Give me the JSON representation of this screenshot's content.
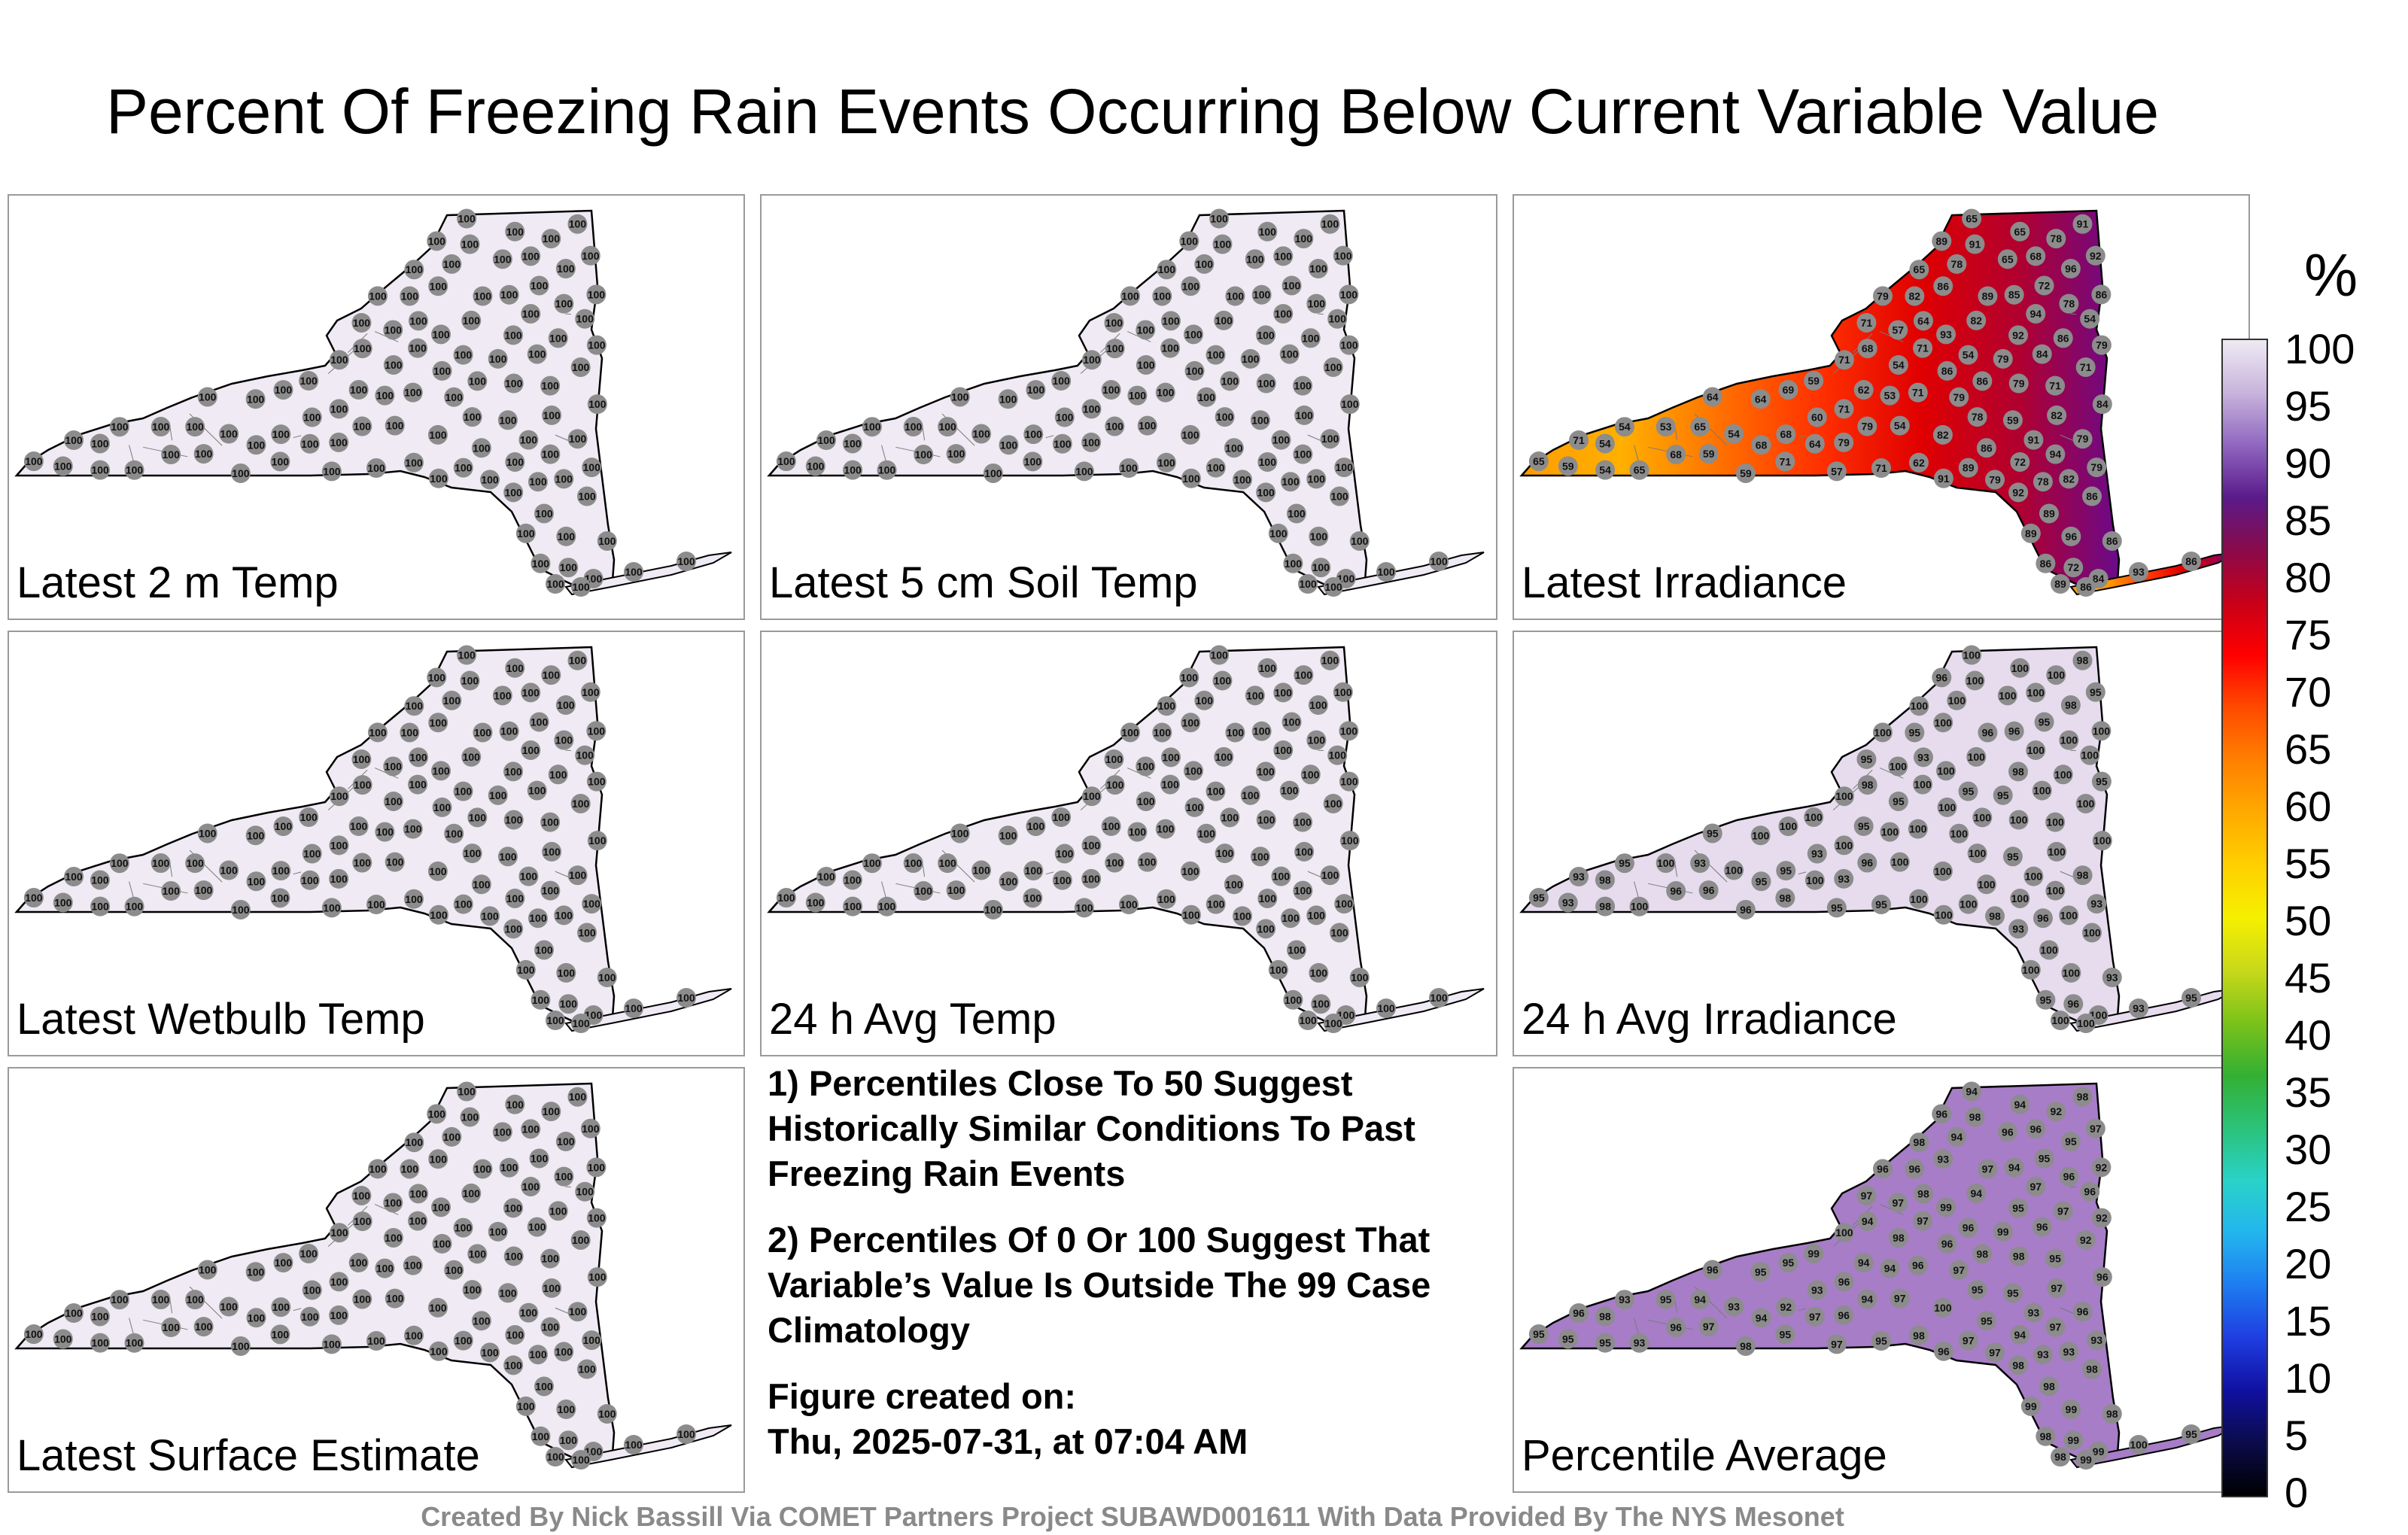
{
  "title": "Percent Of Freezing Rain Events Occurring Below Current Variable Value",
  "panels": [
    {
      "label": "Latest 2 m Temp",
      "mode": "uniform",
      "value": 100,
      "color": "#efeaf3"
    },
    {
      "label": "Latest 5 cm Soil Temp",
      "mode": "uniform",
      "value": 100,
      "color": "#efeaf3"
    },
    {
      "label": "Latest Irradiance",
      "mode": "irradiance",
      "stations_west": [
        65,
        65,
        71,
        68,
        64,
        57,
        59,
        59,
        68,
        53,
        54,
        65,
        54,
        54
      ],
      "stations_mid": [
        59,
        65,
        68,
        69,
        59,
        63,
        54,
        53,
        59,
        57,
        54,
        64,
        71,
        71,
        60,
        62,
        67,
        68,
        71,
        76,
        78,
        82,
        79,
        86,
        71
      ],
      "stations_east": [
        89,
        86,
        93,
        86,
        82,
        72,
        71,
        84,
        79,
        82,
        85,
        72,
        82,
        78,
        86,
        65,
        59,
        71,
        65,
        79,
        86,
        89,
        82,
        94,
        91,
        89,
        86,
        94,
        85,
        68,
        92,
        86,
        79,
        86,
        91,
        96,
        97,
        92,
        98,
        89,
        82,
        83,
        84,
        79,
        78,
        78,
        79,
        69,
        54,
        86
      ],
      "colors": [
        "#ff9c00",
        "#ffb000",
        "#ff7000",
        "#ff3000",
        "#e00000",
        "#b00030",
        "#6a0a8a"
      ]
    },
    {
      "label": "Latest Wetbulb Temp",
      "mode": "uniform",
      "value": 100,
      "color": "#efeaf3"
    },
    {
      "label": "24 h Avg Temp",
      "mode": "uniform",
      "value": 100,
      "color": "#efeaf3"
    },
    {
      "label": "24 h Avg Irradiance",
      "mode": "mixed",
      "values": [
        100,
        100,
        100,
        93,
        95,
        95,
        96,
        100,
        98,
        100,
        100
      ],
      "color": "#e6dcee"
    },
    {
      "label": "Latest Surface Estimate",
      "mode": "uniform",
      "value": 100,
      "color": "#efeaf3"
    },
    {
      "label": "Percentile Average",
      "mode": "average",
      "values": [
        98,
        98,
        99,
        98,
        96,
        95,
        97,
        96,
        96,
        97,
        97,
        95,
        94,
        92,
        93,
        94,
        95,
        96,
        96,
        97,
        98,
        99,
        100,
        95,
        93,
        94,
        93,
        92,
        94,
        93,
        95,
        96,
        94,
        97,
        98,
        99,
        98,
        97,
        95,
        96
      ],
      "color": "#a77dc7"
    }
  ],
  "notes": {
    "p1": "1) Percentiles Close To 50 Suggest Historically Similar Conditions To Past Freezing Rain Events",
    "p2": "2) Percentiles Of 0 Or 100 Suggest That Variable’s Value Is Outside The 99 Case Climatology",
    "created_label": "Figure created on:",
    "created_time": "Thu, 2025-07-31, at 07:04 AM"
  },
  "colorbar": {
    "unit": "%",
    "ticks": [
      "100",
      "95",
      "90",
      "85",
      "80",
      "75",
      "70",
      "65",
      "60",
      "55",
      "50",
      "45",
      "40",
      "35",
      "30",
      "25",
      "20",
      "15",
      "10",
      "5",
      "0"
    ],
    "colors": [
      "#000000",
      "#0b0b4a",
      "#1010a0",
      "#1f3de0",
      "#1e7cf0",
      "#23b5ee",
      "#2ad2c8",
      "#2bc27a",
      "#33b033",
      "#7ac21a",
      "#c8d81a",
      "#f5f000",
      "#ffd000",
      "#ffaa00",
      "#ff8000",
      "#ff4a00",
      "#ff0000",
      "#c80018",
      "#8a0a4a",
      "#5a1a8a",
      "#9066c0",
      "#c8b4dc",
      "#efeaf3"
    ]
  },
  "credit": "Created By Nick Bassill Via COMET Partners Project SUBAWD001611 With Data Provided By The NYS Mesonet"
}
